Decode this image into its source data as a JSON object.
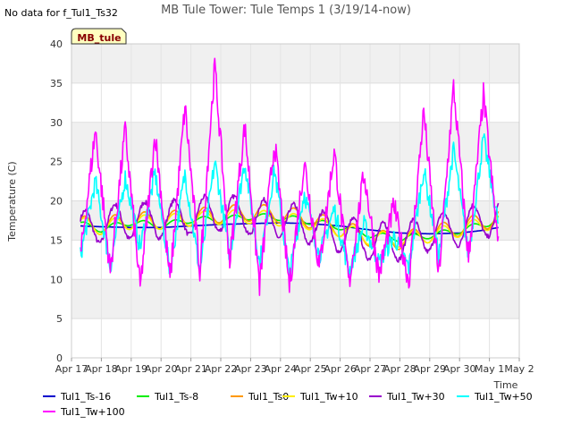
{
  "no_data_note": "No data for f_Tul1_Ts32",
  "site_badge": "MB_tule",
  "chart_data": {
    "type": "line",
    "title": "MB Tule Tower: Tule Temps 1 (3/19/14-now)",
    "xlabel": "Time",
    "ylabel": "Temperature (C)",
    "xlim": [
      0,
      15
    ],
    "ylim": [
      0,
      40
    ],
    "grid": true,
    "x_ticks": [
      0,
      1,
      2,
      3,
      4,
      5,
      6,
      7,
      8,
      9,
      10,
      11,
      12,
      13,
      14,
      15
    ],
    "x_tick_labels": [
      "Apr 17",
      "Apr 18",
      "Apr 19",
      "Apr 20",
      "Apr 21",
      "Apr 22",
      "Apr 23",
      "Apr 24",
      "Apr 25",
      "Apr 26",
      "Apr 27",
      "Apr 28",
      "Apr 29",
      "Apr 30",
      "May 1",
      "May 2"
    ],
    "y_ticks": [
      0,
      5,
      10,
      15,
      20,
      25,
      30,
      35,
      40
    ],
    "legend_position": "bottom",
    "series": [
      {
        "name": "Tul1_Ts-16",
        "color": "#0000cc",
        "x": [
          0.3,
          1,
          2,
          3,
          4,
          5,
          6,
          7,
          8,
          9,
          10,
          11,
          12,
          13,
          13.7,
          14.3
        ],
        "y": [
          16.8,
          16.7,
          16.6,
          16.6,
          16.8,
          17.0,
          17.1,
          17.2,
          17.1,
          16.8,
          16.3,
          15.9,
          15.8,
          15.9,
          16.2,
          16.6
        ]
      },
      {
        "name": "Tul1_Ts-8",
        "color": "#00ee00",
        "x": [
          0.3,
          1,
          2,
          3,
          4,
          5,
          6,
          7,
          8,
          9,
          10,
          11,
          12,
          13,
          14,
          14.3
        ],
        "y": [
          17.0,
          16.4,
          17.3,
          16.8,
          17.6,
          17.6,
          18.0,
          17.9,
          17.4,
          16.7,
          15.7,
          15.2,
          15.6,
          16.2,
          17.2,
          17.8
        ],
        "amplitude": 0.4
      },
      {
        "name": "Tul1_Ts0",
        "color": "#ff9900",
        "x": [
          0.3,
          1,
          2,
          3,
          4,
          5,
          6,
          7,
          8,
          9,
          10,
          11,
          12,
          13,
          14,
          14.3
        ],
        "y": [
          17.0,
          16.8,
          17.5,
          17.5,
          17.9,
          18.3,
          18.5,
          18.3,
          17.6,
          16.5,
          15.3,
          14.9,
          15.8,
          16.6,
          17.6,
          18.0
        ],
        "amplitude": 1.1
      },
      {
        "name": "Tul1_Tw+10",
        "color": "#ffee00",
        "x": [
          0.3,
          1,
          2,
          3,
          4,
          5,
          6,
          7,
          8,
          9,
          10,
          11,
          12,
          13,
          14,
          14.3
        ],
        "y": [
          17.0,
          16.6,
          17.3,
          17.3,
          17.7,
          17.9,
          18.0,
          17.7,
          17.2,
          16.3,
          15.3,
          15.0,
          15.6,
          16.3,
          17.2,
          17.6
        ],
        "amplitude": 0.9
      },
      {
        "name": "Tul1_Tw+30",
        "color": "#9900cc",
        "x": [
          0.3,
          1,
          2,
          3,
          4,
          5,
          6,
          7,
          8,
          9,
          10,
          11,
          12,
          13,
          14,
          14.3
        ],
        "y": [
          16.3,
          17.0,
          17.5,
          17.6,
          18.0,
          18.5,
          18.0,
          17.6,
          16.8,
          15.8,
          14.9,
          14.8,
          15.9,
          16.6,
          17.8,
          18.3
        ],
        "amplitude": 2.3
      },
      {
        "name": "Tul1_Tw+50",
        "color": "#00ffff",
        "x": [
          0.3,
          0.8,
          1.3,
          1.8,
          2.3,
          2.8,
          3.3,
          3.8,
          4.3,
          4.8,
          5.3,
          5.8,
          6.3,
          6.8,
          7.3,
          7.8,
          8.3,
          8.8,
          9.3,
          9.8,
          10.3,
          10.8,
          11.3,
          11.8,
          12.3,
          12.8,
          13.3,
          13.8,
          14.3
        ],
        "y": [
          13.0,
          22.5,
          11.5,
          23.0,
          14.0,
          23.5,
          11.0,
          23.5,
          11.0,
          25.0,
          13.0,
          25.0,
          12.0,
          24.0,
          10.5,
          21.0,
          13.0,
          19.0,
          11.0,
          17.0,
          12.0,
          15.5,
          11.5,
          24.0,
          13.0,
          26.5,
          13.0,
          28.0,
          17.0
        ]
      },
      {
        "name": "Tul1_Tw+100",
        "color": "#ff00ff",
        "x": [
          0.3,
          0.8,
          1.3,
          1.8,
          2.3,
          2.8,
          3.3,
          3.8,
          4.3,
          4.8,
          5.3,
          5.8,
          6.3,
          6.8,
          7.3,
          7.8,
          8.3,
          8.8,
          9.3,
          9.8,
          10.3,
          10.8,
          11.3,
          11.8,
          12.3,
          12.8,
          13.3,
          13.8,
          14.3
        ],
        "y": [
          12.8,
          29.0,
          11.0,
          29.0,
          8.8,
          28.5,
          9.8,
          32.0,
          11.0,
          37.2,
          12.3,
          29.5,
          9.3,
          27.5,
          9.1,
          25.0,
          11.5,
          26.3,
          9.5,
          23.5,
          10.5,
          19.5,
          9.6,
          31.5,
          10.3,
          34.5,
          12.6,
          33.5,
          14.1
        ]
      }
    ]
  }
}
